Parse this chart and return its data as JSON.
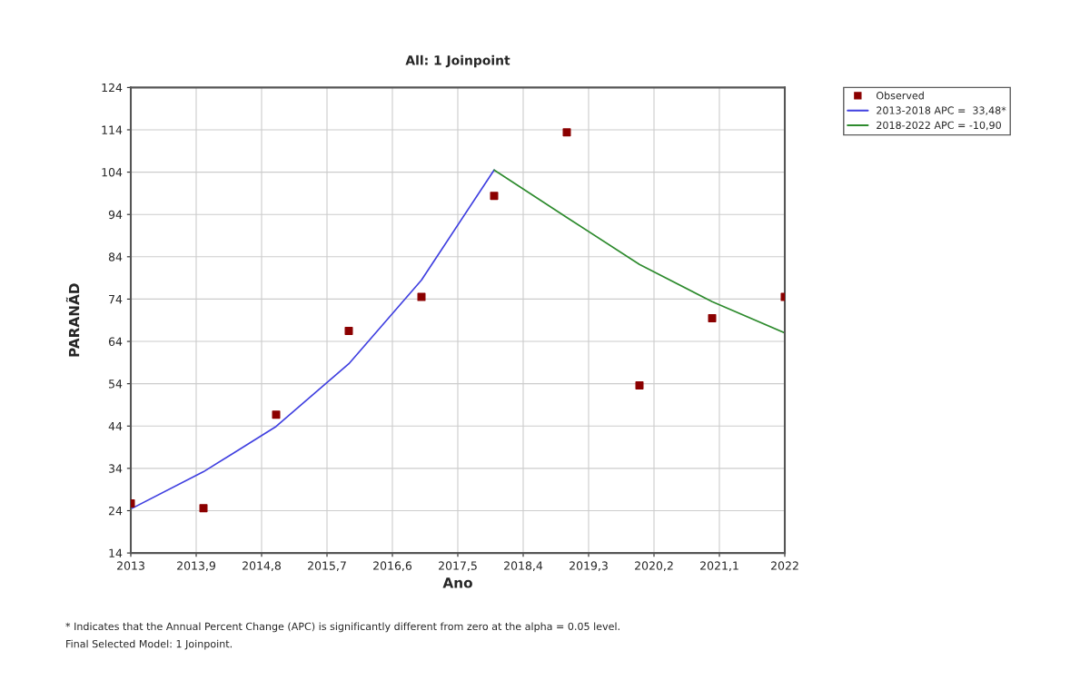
{
  "chart_data": {
    "type": "scatter",
    "title": "All: 1 Joinpoint",
    "xlabel": "Ano",
    "ylabel": "PARANÃD",
    "x": [
      2013,
      2014,
      2015,
      2016,
      2017,
      2018,
      2019,
      2020,
      2021,
      2022
    ],
    "series": [
      {
        "name": "Observed",
        "color": "#8b0000",
        "marker": "square",
        "values": [
          25.7,
          24.6,
          46.7,
          66.5,
          74.5,
          98.4,
          113.4,
          53.6,
          69.5,
          74.5
        ]
      },
      {
        "name": "2013-2018 APC =  33,48*",
        "type": "line",
        "color": "#4040e0",
        "marker": "none",
        "x": [
          2013,
          2014,
          2015,
          2016,
          2017,
          2018
        ],
        "values": [
          24.4,
          33.2,
          43.9,
          58.7,
          78.5,
          104.5
        ]
      },
      {
        "name": "2018-2022 APC = -10,90",
        "type": "line",
        "color": "#2e8b2e",
        "marker": "none",
        "x": [
          2018,
          2019,
          2020,
          2021,
          2022
        ],
        "values": [
          104.5,
          93.3,
          82.2,
          73.4,
          66.0
        ]
      }
    ],
    "xlim": [
      2013,
      2022
    ],
    "xticks": [
      2013,
      {
        "value": 2013.9,
        "label": "2013,9"
      },
      {
        "value": 2014.8,
        "label": "2014,8"
      },
      {
        "value": 2015.7,
        "label": "2015,7"
      },
      {
        "value": 2016.6,
        "label": "2016,6"
      },
      {
        "value": 2017.5,
        "label": "2017,5"
      },
      {
        "value": 2018.4,
        "label": "2018,4"
      },
      {
        "value": 2019.3,
        "label": "2019,3"
      },
      {
        "value": 2020.2,
        "label": "2020,2"
      },
      {
        "value": 2021.1,
        "label": "2021,1"
      },
      2022
    ],
    "ylim": [
      14,
      124
    ],
    "yticks": [
      14,
      24,
      34,
      44,
      54,
      64,
      74,
      84,
      94,
      104,
      114,
      124
    ],
    "grid": true,
    "legend": "top right",
    "annotations": [
      "* Indicates that the Annual Percent Change (APC) is significantly different from zero at the alpha = 0.05 level.",
      "Final Selected Model: 1 Joinpoint."
    ]
  }
}
